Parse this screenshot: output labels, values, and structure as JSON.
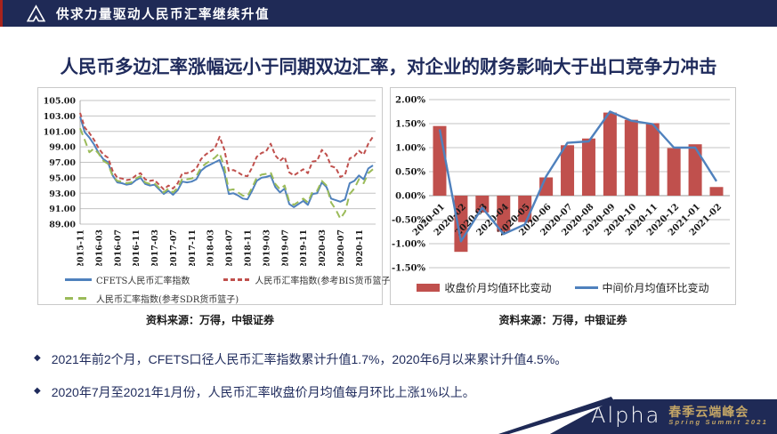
{
  "header": {
    "title": "供求力量驱动人民币汇率继续升值"
  },
  "slide_title": "人民币多边汇率涨幅远小于同期双边汇率，对企业的财务影响大于出口竞争力冲击",
  "sources": {
    "left": "资料来源：万得，中银证券",
    "right": "资料来源：万得，中银证券"
  },
  "bullets": [
    "2021年前2个月，CFETS口径人民币汇率指数累计升值1.7%，2020年6月以来累计升值4.5%。",
    "2020年7月至2021年1月份，人民币汇率收盘价月均值每月环比上涨1%以上。"
  ],
  "footer": {
    "brand": "Alpha",
    "event_cn": "春季云端峰会",
    "event_en": "Spring Summit 2021"
  },
  "colors": {
    "navy": "#1F2A56",
    "red_accent": "#A8231C",
    "chart_red": "#C0504D",
    "chart_blue": "#4F81BD",
    "chart_green": "#9BBB59",
    "gold": "#C3A566",
    "grid": "#C3C3C3",
    "box_border": "#C9C9C9"
  },
  "chart_data": [
    {
      "type": "line",
      "ylim": [
        89,
        105
      ],
      "ystep": 2,
      "tick_every": 4,
      "grid": true,
      "legend_position": "bottom",
      "x": [
        "2015-11",
        "2015-12",
        "2016-01",
        "2016-02",
        "2016-03",
        "2016-04",
        "2016-05",
        "2016-06",
        "2016-07",
        "2016-08",
        "2016-09",
        "2016-10",
        "2016-11",
        "2016-12",
        "2017-01",
        "2017-02",
        "2017-03",
        "2017-04",
        "2017-05",
        "2017-06",
        "2017-07",
        "2017-08",
        "2017-09",
        "2017-10",
        "2017-11",
        "2017-12",
        "2018-01",
        "2018-02",
        "2018-03",
        "2018-04",
        "2018-05",
        "2018-06",
        "2018-07",
        "2018-08",
        "2018-09",
        "2018-10",
        "2018-11",
        "2018-12",
        "2019-01",
        "2019-02",
        "2019-03",
        "2019-04",
        "2019-05",
        "2019-06",
        "2019-07",
        "2019-08",
        "2019-09",
        "2019-10",
        "2019-11",
        "2019-12",
        "2020-01",
        "2020-02",
        "2020-03",
        "2020-04",
        "2020-05",
        "2020-06",
        "2020-07",
        "2020-08",
        "2020-09",
        "2020-10",
        "2020-11",
        "2020-12",
        "2021-01",
        "2021-02"
      ],
      "series": [
        {
          "name": "CFETS人民币汇率指数",
          "color": "#4F81BD",
          "dash": "solid",
          "values": [
            102.9,
            100.9,
            100.2,
            99.3,
            98.2,
            97.4,
            97.0,
            95.3,
            94.4,
            94.3,
            94.1,
            94.2,
            94.7,
            95.0,
            94.2,
            94.0,
            94.1,
            93.5,
            92.9,
            93.3,
            92.8,
            93.4,
            94.5,
            94.4,
            94.5,
            94.8,
            95.9,
            96.4,
            96.7,
            97.0,
            97.3,
            95.7,
            92.9,
            93.0,
            92.7,
            92.3,
            92.2,
            93.3,
            94.6,
            95.0,
            95.1,
            95.3,
            93.8,
            93.1,
            93.6,
            91.6,
            91.2,
            91.6,
            92.0,
            91.5,
            92.9,
            93.0,
            94.4,
            93.8,
            92.3,
            92.1,
            91.9,
            92.2,
            94.3,
            94.6,
            95.3,
            94.8,
            96.2,
            96.6
          ]
        },
        {
          "name": "人民币汇率指数(参考BIS货币篮子)",
          "color": "#C0504D",
          "dash": "dashed",
          "values": [
            103.4,
            101.5,
            100.8,
            99.9,
            98.8,
            98.0,
            97.6,
            95.9,
            95.0,
            94.9,
            94.7,
            94.8,
            95.3,
            95.6,
            94.8,
            94.6,
            94.7,
            94.1,
            93.5,
            94.0,
            93.6,
            94.3,
            95.6,
            95.6,
            95.8,
            96.2,
            97.4,
            98.0,
            98.4,
            98.8,
            100.3,
            98.7,
            95.9,
            96.0,
            95.7,
            95.3,
            95.2,
            96.3,
            97.7,
            98.2,
            98.4,
            99.4,
            97.9,
            97.2,
            97.7,
            95.7,
            95.3,
            95.7,
            96.1,
            95.6,
            97.1,
            97.2,
            98.6,
            98.0,
            96.5,
            96.3,
            95.1,
            95.4,
            97.5,
            97.8,
            98.5,
            98.0,
            99.4,
            100.3
          ]
        },
        {
          "name": "人民币汇率指数(参考SDR货币篮子)",
          "color": "#9BBB59",
          "dash": "long-dash",
          "values": [
            101.4,
            99.9,
            98.3,
            98.8,
            98.1,
            97.2,
            96.8,
            95.2,
            94.6,
            94.5,
            94.3,
            94.4,
            94.9,
            95.2,
            94.4,
            94.2,
            94.3,
            93.7,
            93.1,
            93.6,
            93.1,
            93.7,
            94.9,
            94.8,
            94.9,
            95.2,
            96.3,
            96.8,
            97.2,
            97.6,
            98.2,
            96.4,
            93.4,
            93.5,
            93.1,
            92.7,
            92.6,
            93.7,
            95.0,
            95.4,
            95.5,
            95.7,
            94.2,
            93.5,
            94.0,
            91.9,
            91.5,
            91.9,
            92.3,
            91.8,
            93.2,
            93.3,
            94.6,
            94.0,
            91.8,
            90.9,
            89.7,
            90.6,
            92.9,
            93.6,
            94.8,
            94.3,
            95.6,
            96.1
          ]
        }
      ]
    },
    {
      "type": "bar-line",
      "ylim": [
        -1.5,
        2.0
      ],
      "ystep": 0.5,
      "value_format": "percent",
      "grid": true,
      "legend_position": "bottom",
      "categories": [
        "2020-01",
        "2020-02",
        "2020-03",
        "2020-04",
        "2020-05",
        "2020-06",
        "2020-07",
        "2020-08",
        "2020-09",
        "2020-10",
        "2020-11",
        "2020-12",
        "2021-01",
        "2021-02"
      ],
      "bars": {
        "name": "收盘价月均值环比变动",
        "color": "#C0504D",
        "values": [
          1.45,
          -1.17,
          -0.35,
          -0.75,
          -0.55,
          0.38,
          1.05,
          1.19,
          1.73,
          1.58,
          1.51,
          0.99,
          1.07,
          0.18
        ]
      },
      "line": {
        "name": "中间价月均值环比变动",
        "color": "#4F81BD",
        "values": [
          1.38,
          -0.95,
          -0.25,
          -0.8,
          -0.6,
          0.4,
          1.1,
          1.13,
          1.75,
          1.56,
          1.49,
          1.0,
          1.0,
          0.3
        ]
      }
    }
  ]
}
